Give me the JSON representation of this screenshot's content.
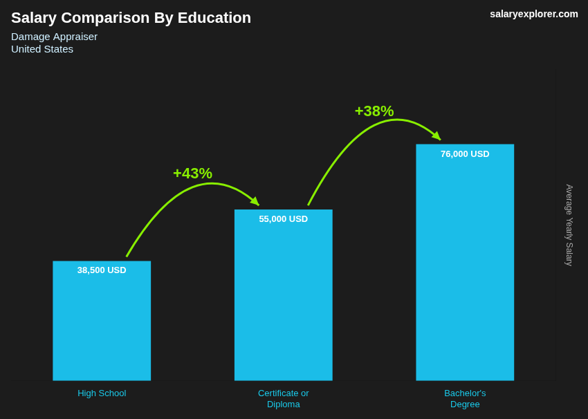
{
  "chart_data": {
    "type": "bar",
    "title": "Salary Comparison By Education",
    "subtitle": [
      "Damage Appraiser",
      "United States"
    ],
    "categories": [
      "High School",
      "Certificate or\nDiploma",
      "Bachelor's\nDegree"
    ],
    "values": [
      38500,
      55000,
      76000
    ],
    "value_labels": [
      "38,500 USD",
      "55,000 USD",
      "76,000 USD"
    ],
    "data_labels": true,
    "color": "#1bbde8",
    "y_label": "Average Yearly Salary",
    "ylim": [
      0,
      100000
    ],
    "tick_labels": "x",
    "grid": false,
    "annotations": [
      "+43%",
      "+38%",
      "salaryexplorer.com"
    ]
  }
}
